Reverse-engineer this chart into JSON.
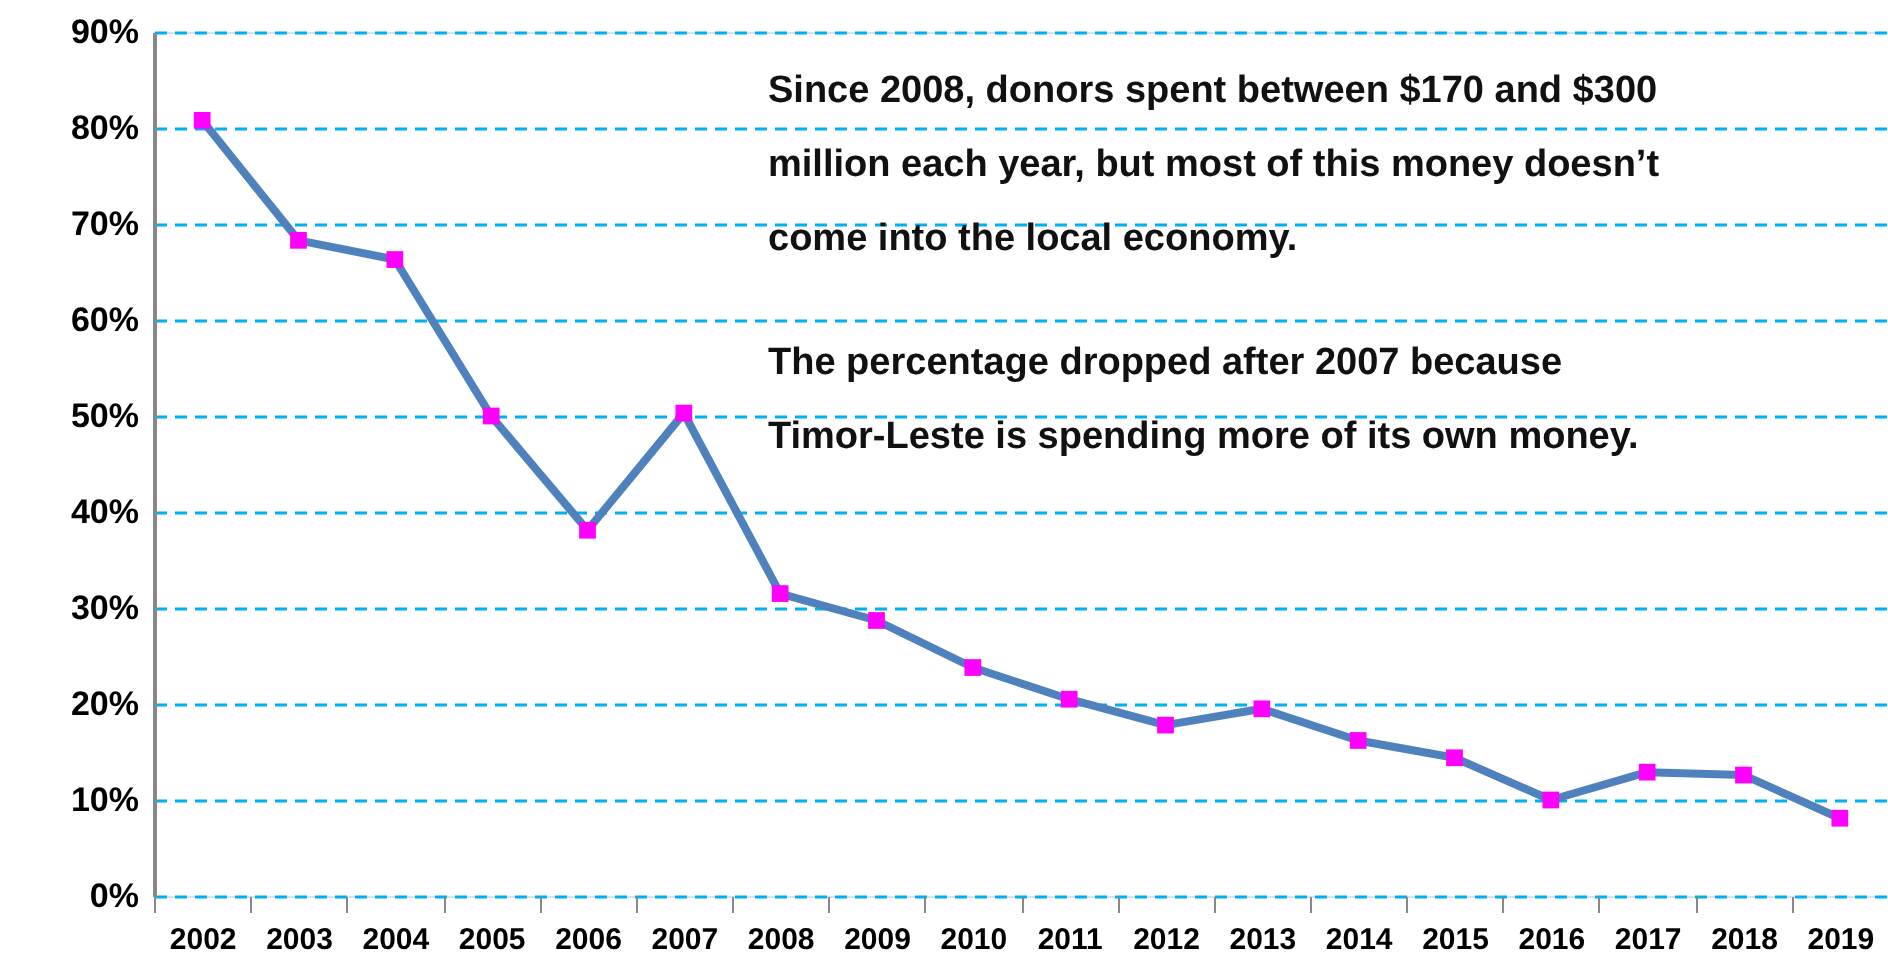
{
  "chart_data": {
    "type": "line",
    "categories": [
      "2002",
      "2003",
      "2004",
      "2005",
      "2006",
      "2007",
      "2008",
      "2009",
      "2010",
      "2011",
      "2012",
      "2013",
      "2014",
      "2015",
      "2016",
      "2017",
      "2018",
      "2019"
    ],
    "series": [
      {
        "color": "#4f81bd",
        "values": [
          80.8,
          68.3,
          66.3,
          50,
          38.1,
          50.3,
          31.5,
          28.7,
          23.8,
          20.5,
          17.8,
          19.5,
          16.2,
          14.4,
          10,
          12.9,
          12.6,
          8.1
        ]
      },
      {
        "type": "scatter",
        "color": "#ff00ff",
        "values": [
          80.8,
          68.3,
          66.3,
          50,
          38.1,
          50.3,
          31.5,
          28.7,
          23.8,
          20.5,
          17.8,
          19.5,
          16.2,
          14.4,
          10,
          12.9,
          12.6,
          8.1
        ]
      }
    ],
    "ylim": [
      0,
      90
    ],
    "yticks": [
      {
        "value": 0,
        "label": "0%"
      },
      {
        "value": 10,
        "label": "10%"
      },
      {
        "value": 20,
        "label": "20%"
      },
      {
        "value": 30,
        "label": "30%"
      },
      {
        "value": 40,
        "label": "40%"
      },
      {
        "value": 50,
        "label": "50%"
      },
      {
        "value": 60,
        "label": "60%"
      },
      {
        "value": 70,
        "label": "70%"
      },
      {
        "value": 80,
        "label": "80%"
      },
      {
        "value": 90,
        "label": "90%"
      }
    ],
    "grid": "y",
    "line_style": "solid",
    "annotations": [
      "Since 2008, donors spent between $170 and $300 million each year, but most of this money doesn’t come into the local economy.",
      "The percentage dropped after 2007 because Timor-Leste is spending more of its own money."
    ]
  }
}
